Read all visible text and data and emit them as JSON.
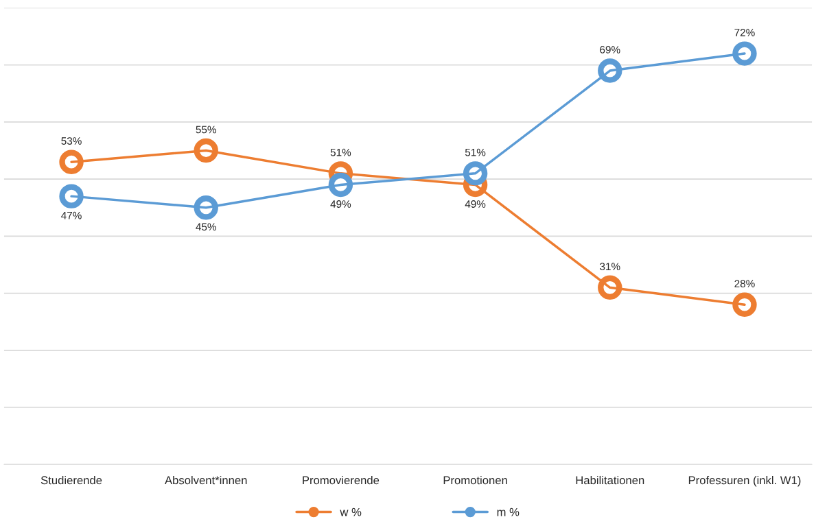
{
  "chart_data": {
    "type": "line",
    "categories": [
      "Studierende",
      "Absolvent*innen",
      "Promovierende",
      "Promotionen",
      "Habilitationen",
      "Professuren (inkl. W1)"
    ],
    "series": [
      {
        "name": "w %",
        "color": "#ed7d31",
        "values": [
          53,
          55,
          51,
          49,
          31,
          28
        ],
        "value_labels": [
          "53%",
          "55%",
          "51%",
          "49%",
          "31%",
          "28%"
        ]
      },
      {
        "name": "m %",
        "color": "#5b9bd5",
        "values": [
          47,
          45,
          49,
          51,
          69,
          72
        ],
        "value_labels": [
          "47%",
          "45%",
          "49%",
          "51%",
          "69%",
          "72%"
        ]
      }
    ],
    "ylim": [
      0,
      80
    ],
    "yticks": [
      {
        "value": 0,
        "label": null
      },
      {
        "value": 10,
        "label": null
      },
      {
        "value": 20,
        "label": null
      },
      {
        "value": 30,
        "label": null
      },
      {
        "value": 40,
        "label": null
      },
      {
        "value": 50,
        "label": null
      },
      {
        "value": 60,
        "label": null
      },
      {
        "value": 70,
        "label": null
      },
      {
        "value": 80,
        "label": null
      }
    ],
    "tick_labels": "x",
    "grid": "y",
    "legend": "bottom",
    "marker": "circle",
    "line_style": "solid"
  }
}
